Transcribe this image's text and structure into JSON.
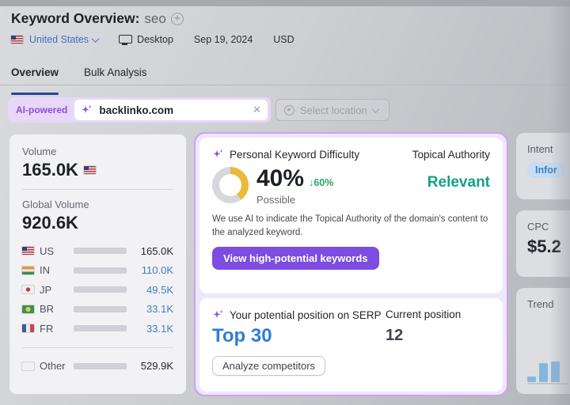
{
  "header": {
    "title": "Keyword Overview:",
    "keyword": "seo",
    "country": "United States",
    "device": "Desktop",
    "date": "Sep 19, 2024",
    "currency": "USD"
  },
  "tabs": {
    "overview": "Overview",
    "bulk": "Bulk Analysis"
  },
  "search": {
    "ai_badge": "AI-powered",
    "value": "backlinko.com",
    "clear_icon": "✕",
    "location_placeholder": "Select location"
  },
  "volume_panel": {
    "volume_label": "Volume",
    "volume_value": "165.0K",
    "global_label": "Global Volume",
    "global_value": "920.6K",
    "countries": [
      {
        "code": "us",
        "label": "US",
        "value": "165.0K",
        "share": 18,
        "bar_color": "#1d5fc0",
        "value_style": "dark",
        "divider_before": false
      },
      {
        "code": "in",
        "label": "IN",
        "value": "110.0K",
        "share": 12,
        "bar_color": "#42a0dd",
        "value_style": "link",
        "divider_before": false
      },
      {
        "code": "jp",
        "label": "JP",
        "value": "49.5K",
        "share": 5.5,
        "bar_color": "#42a0dd",
        "value_style": "link",
        "divider_before": false
      },
      {
        "code": "br",
        "label": "BR",
        "value": "33.1K",
        "share": 4,
        "bar_color": "#42a0dd",
        "value_style": "link",
        "divider_before": false
      },
      {
        "code": "fr",
        "label": "FR",
        "value": "33.1K",
        "share": 4,
        "bar_color": "#42a0dd",
        "value_style": "link",
        "divider_before": false
      },
      {
        "code": "other",
        "label": "Other",
        "value": "529.9K",
        "share": 58,
        "bar_color": "#3e9ad9",
        "value_style": "dark",
        "divider_before": true
      }
    ]
  },
  "difficulty_card": {
    "title": "Personal Keyword Difficulty",
    "percent": 40,
    "percent_label": "40%",
    "delta": "↓60%",
    "level": "Possible",
    "topical_label": "Topical Authority",
    "topical_value": "Relevant",
    "description": "We use AI to indicate the Topical Authority of the domain's content to the analyzed keyword.",
    "cta": "View high-potential keywords"
  },
  "serp_card": {
    "title": "Your potential position on SERP",
    "potential": "Top 30",
    "current_label": "Current position",
    "current_value": "12",
    "cta": "Analyze competitors"
  },
  "side_cards": {
    "intent_label": "Intent",
    "intent_value": "Infor",
    "cpc_label": "CPC",
    "cpc_value": "$5.2",
    "trend_label": "Trend",
    "trend_bars": [
      7,
      24,
      26
    ]
  },
  "colors": {
    "donut_fill": "#eaba3a",
    "donut_track": "#d6d8db",
    "accent_purple": "#7d4ce0",
    "highlight_border": "#c7a4ef",
    "teal": "#12a284",
    "blue": "#2d7dd8",
    "green": "#2aa365"
  }
}
